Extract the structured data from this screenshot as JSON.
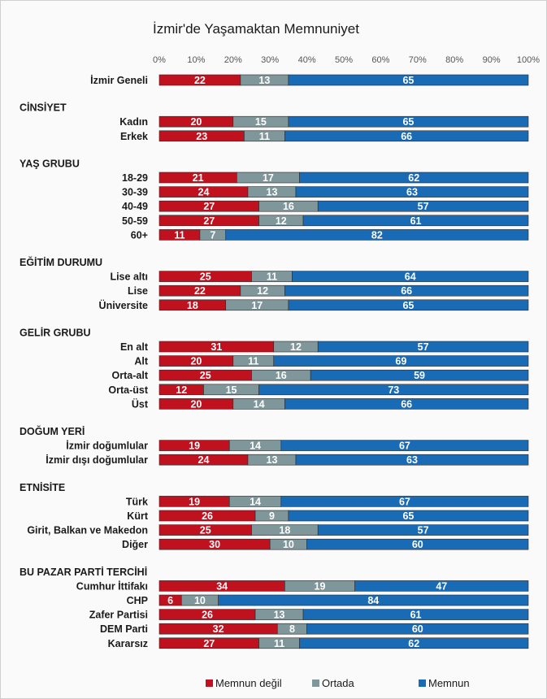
{
  "chart_data": {
    "type": "bar",
    "orientation": "horizontal",
    "stacked": true,
    "title": "İzmir'de Yaşamaktan Memnuniyet",
    "xlim": [
      0,
      100
    ],
    "x_ticks": [
      "0%",
      "10%",
      "20%",
      "30%",
      "40%",
      "50%",
      "60%",
      "70%",
      "80%",
      "90%",
      "100%"
    ],
    "legend_position": "bottom",
    "series": [
      {
        "name": "Memnun değil",
        "color": "#c0111f"
      },
      {
        "name": "Ortada",
        "color": "#7f969b"
      },
      {
        "name": "Memnun",
        "color": "#1a6bb5"
      }
    ],
    "rows": [
      {
        "type": "row",
        "label": "İzmir Geneli",
        "values": [
          22,
          13,
          65
        ]
      },
      {
        "type": "group",
        "label": "CİNSİYET"
      },
      {
        "type": "row",
        "label": "Kadın",
        "values": [
          20,
          15,
          65
        ]
      },
      {
        "type": "row",
        "label": "Erkek",
        "values": [
          23,
          11,
          66
        ]
      },
      {
        "type": "group",
        "label": "YAŞ GRUBU"
      },
      {
        "type": "row",
        "label": "18-29",
        "values": [
          21,
          17,
          62
        ]
      },
      {
        "type": "row",
        "label": "30-39",
        "values": [
          24,
          13,
          63
        ]
      },
      {
        "type": "row",
        "label": "40-49",
        "values": [
          27,
          16,
          57
        ]
      },
      {
        "type": "row",
        "label": "50-59",
        "values": [
          27,
          12,
          61
        ]
      },
      {
        "type": "row",
        "label": "60+",
        "values": [
          11,
          7,
          82
        ]
      },
      {
        "type": "group",
        "label": "EĞİTİM DURUMU"
      },
      {
        "type": "row",
        "label": "Lise altı",
        "values": [
          25,
          11,
          64
        ]
      },
      {
        "type": "row",
        "label": "Lise",
        "values": [
          22,
          12,
          66
        ]
      },
      {
        "type": "row",
        "label": "Üniversite",
        "values": [
          18,
          17,
          65
        ]
      },
      {
        "type": "group",
        "label": "GELİR GRUBU"
      },
      {
        "type": "row",
        "label": "En alt",
        "values": [
          31,
          12,
          57
        ]
      },
      {
        "type": "row",
        "label": "Alt",
        "values": [
          20,
          11,
          69
        ]
      },
      {
        "type": "row",
        "label": "Orta-alt",
        "values": [
          25,
          16,
          59
        ]
      },
      {
        "type": "row",
        "label": "Orta-üst",
        "values": [
          12,
          15,
          73
        ]
      },
      {
        "type": "row",
        "label": "Üst",
        "values": [
          20,
          14,
          66
        ]
      },
      {
        "type": "group",
        "label": "DOĞUM YERİ"
      },
      {
        "type": "row",
        "label": "İzmir doğumlular",
        "values": [
          19,
          14,
          67
        ]
      },
      {
        "type": "row",
        "label": "İzmir dışı doğumlular",
        "values": [
          24,
          13,
          63
        ]
      },
      {
        "type": "group",
        "label": "ETNİSİTE"
      },
      {
        "type": "row",
        "label": "Türk",
        "values": [
          19,
          14,
          67
        ]
      },
      {
        "type": "row",
        "label": "Kürt",
        "values": [
          26,
          9,
          65
        ]
      },
      {
        "type": "row",
        "label": "Girit, Balkan ve Makedon",
        "values": [
          25,
          18,
          57
        ]
      },
      {
        "type": "row",
        "label": "Diğer",
        "values": [
          30,
          10,
          60
        ]
      },
      {
        "type": "group",
        "label": "BU PAZAR PARTİ TERCİHİ"
      },
      {
        "type": "row",
        "label": "Cumhur İttifakı",
        "values": [
          34,
          19,
          47
        ]
      },
      {
        "type": "row",
        "label": "CHP",
        "values": [
          6,
          10,
          84
        ]
      },
      {
        "type": "row",
        "label": "Zafer Partisi",
        "values": [
          26,
          13,
          61
        ]
      },
      {
        "type": "row",
        "label": "DEM Parti",
        "values": [
          32,
          8,
          60
        ]
      },
      {
        "type": "row",
        "label": "Kararsız",
        "values": [
          27,
          11,
          62
        ]
      }
    ]
  }
}
